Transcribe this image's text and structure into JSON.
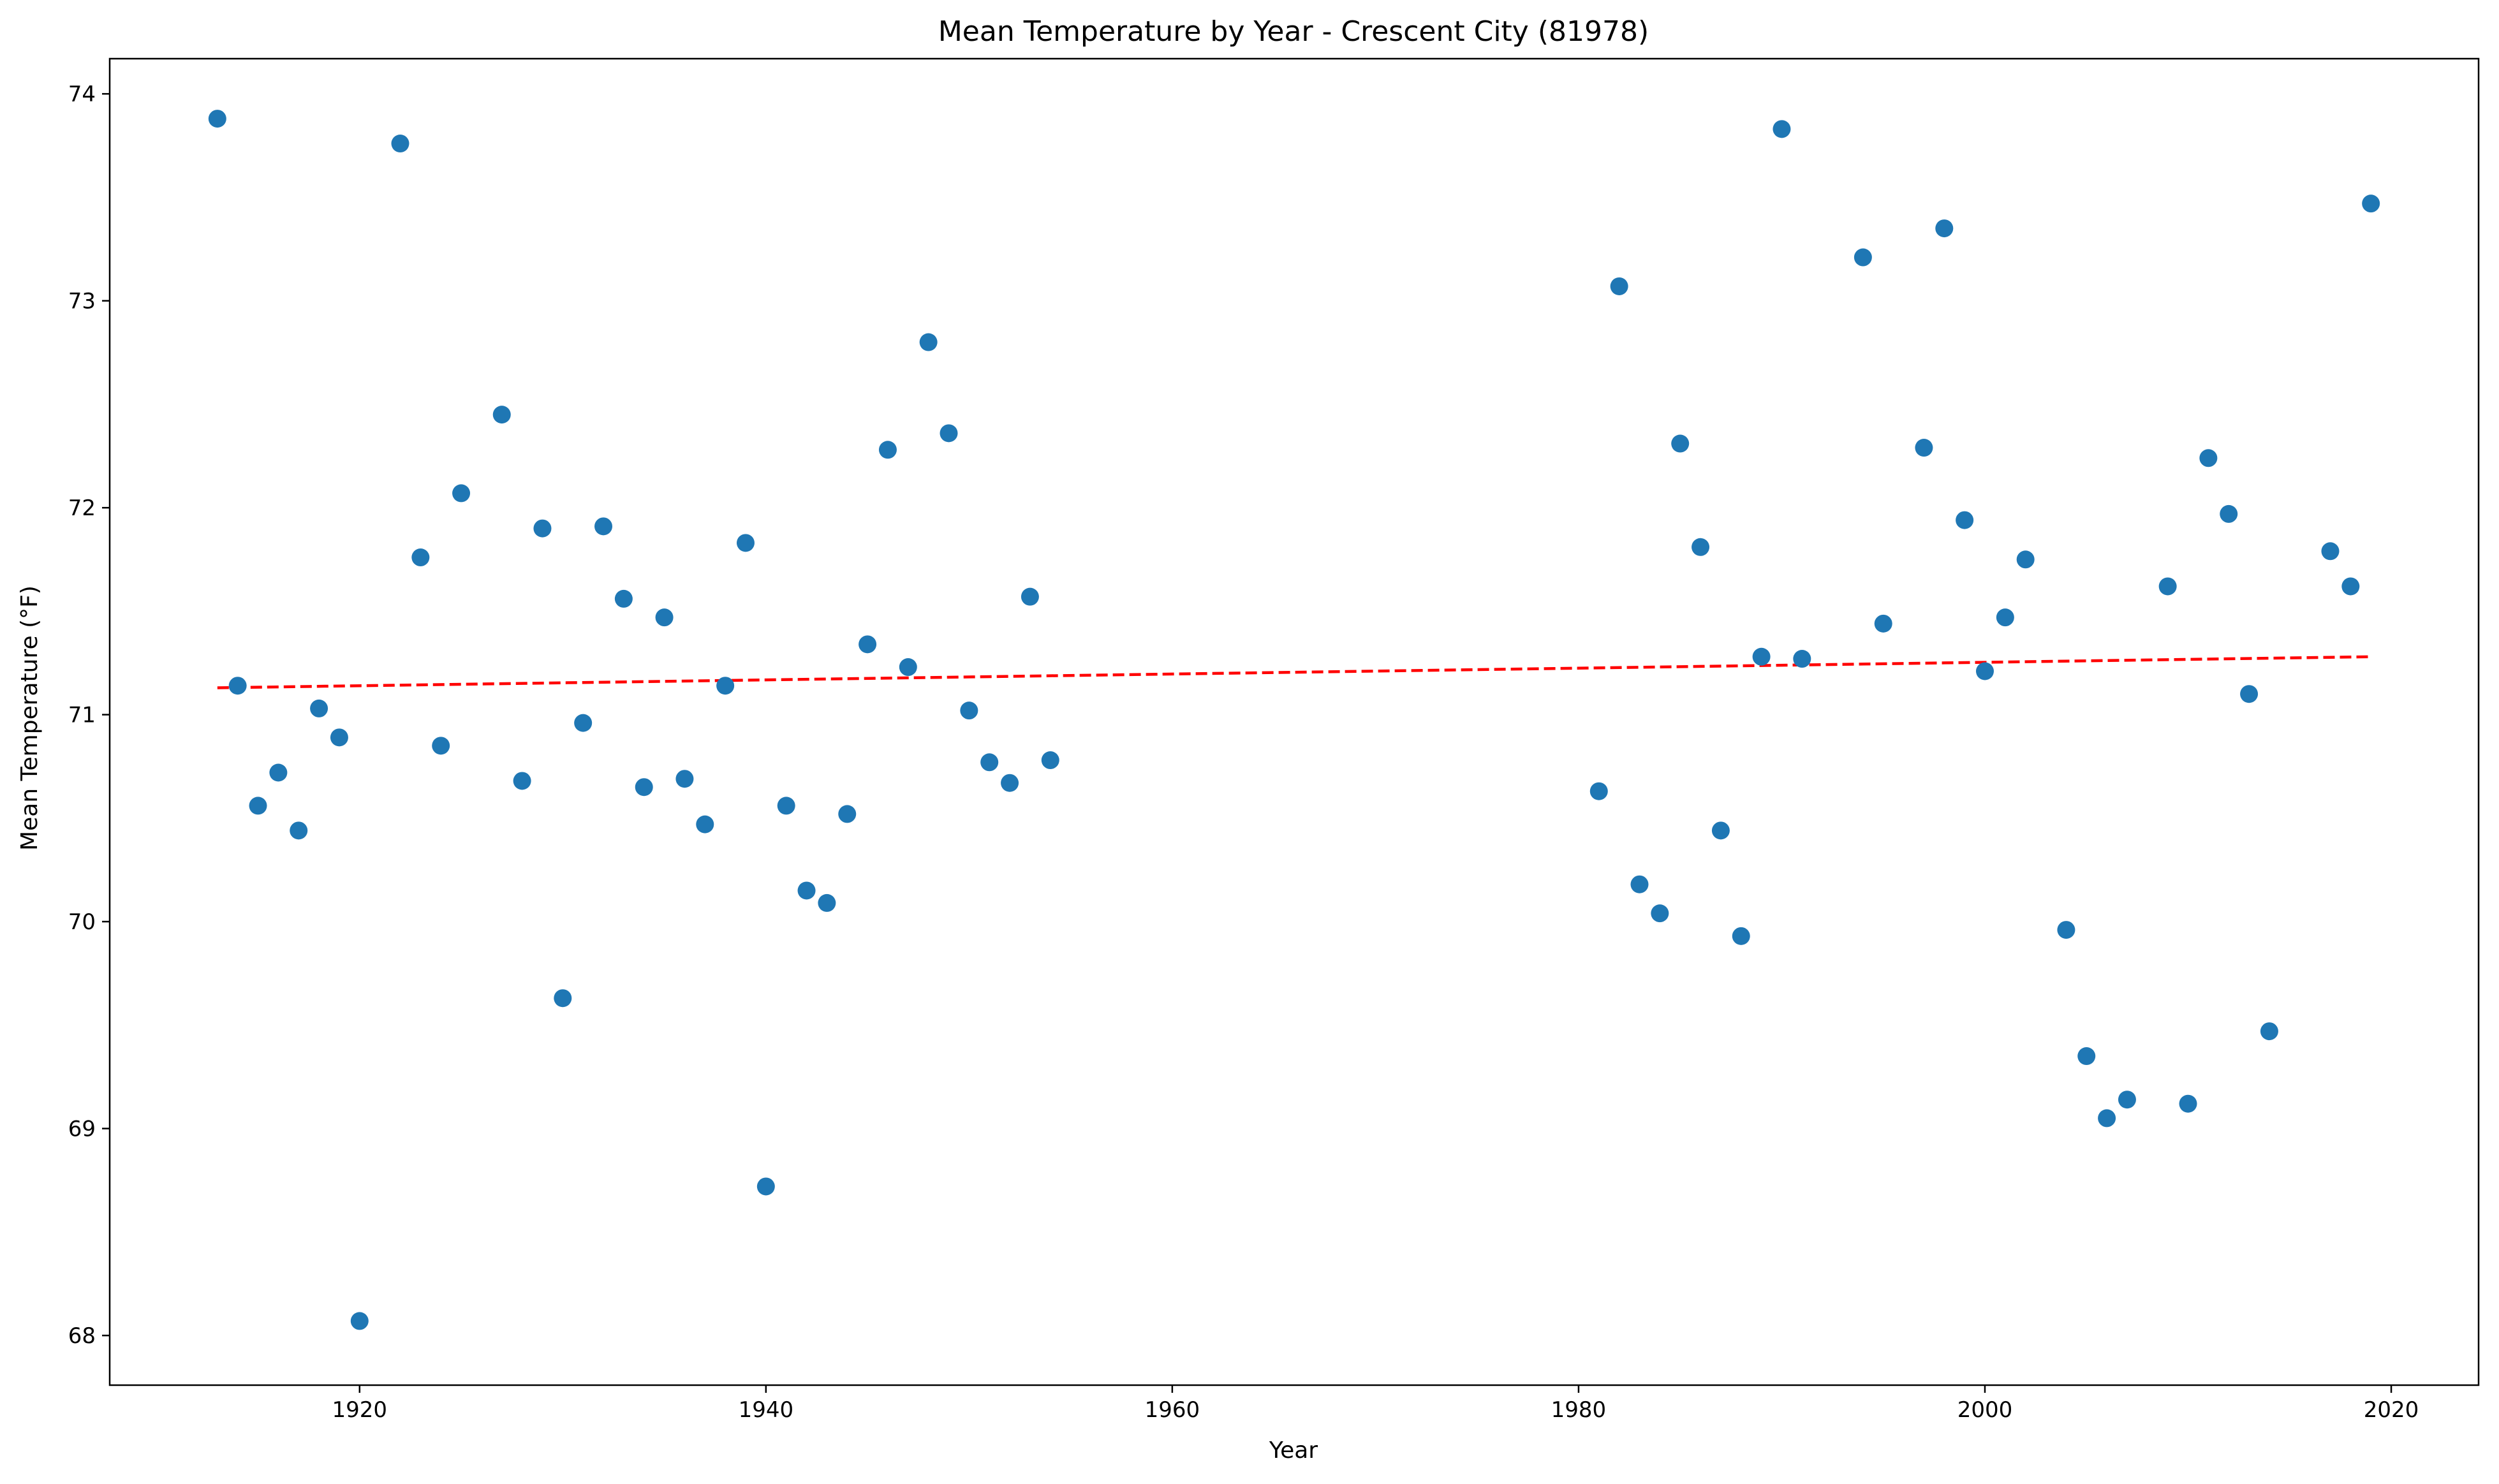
{
  "chart_data": {
    "type": "scatter",
    "title": "Mean Temperature by Year - Crescent City (81978)",
    "xlabel": "Year",
    "ylabel": "Mean Temperature (°F)",
    "xlim": [
      1907.7,
      2024.3
    ],
    "ylim": [
      67.76,
      74.17
    ],
    "xticks": [
      1920,
      1940,
      1960,
      1980,
      2000,
      2020
    ],
    "yticks": [
      68,
      69,
      70,
      71,
      72,
      73,
      74
    ],
    "grid": false,
    "point_color": "#1f77b4",
    "trend_color": "#ff0000",
    "trendline": {
      "x": [
        1913,
        2019
      ],
      "y": [
        71.13,
        71.28
      ],
      "style": "dashed"
    },
    "points": [
      {
        "x": 1913,
        "y": 73.88
      },
      {
        "x": 1914,
        "y": 71.14
      },
      {
        "x": 1915,
        "y": 70.56
      },
      {
        "x": 1916,
        "y": 70.72
      },
      {
        "x": 1917,
        "y": 70.44
      },
      {
        "x": 1918,
        "y": 71.03
      },
      {
        "x": 1919,
        "y": 70.89
      },
      {
        "x": 1920,
        "y": 68.07
      },
      {
        "x": 1922,
        "y": 73.76
      },
      {
        "x": 1923,
        "y": 71.76
      },
      {
        "x": 1924,
        "y": 70.85
      },
      {
        "x": 1925,
        "y": 72.07
      },
      {
        "x": 1927,
        "y": 72.45
      },
      {
        "x": 1928,
        "y": 70.68
      },
      {
        "x": 1929,
        "y": 71.9
      },
      {
        "x": 1930,
        "y": 69.63
      },
      {
        "x": 1931,
        "y": 70.96
      },
      {
        "x": 1932,
        "y": 71.91
      },
      {
        "x": 1933,
        "y": 71.56
      },
      {
        "x": 1934,
        "y": 70.65
      },
      {
        "x": 1935,
        "y": 71.47
      },
      {
        "x": 1936,
        "y": 70.69
      },
      {
        "x": 1937,
        "y": 70.47
      },
      {
        "x": 1938,
        "y": 71.14
      },
      {
        "x": 1939,
        "y": 71.83
      },
      {
        "x": 1940,
        "y": 68.72
      },
      {
        "x": 1941,
        "y": 70.56
      },
      {
        "x": 1942,
        "y": 70.15
      },
      {
        "x": 1943,
        "y": 70.09
      },
      {
        "x": 1944,
        "y": 70.52
      },
      {
        "x": 1945,
        "y": 71.34
      },
      {
        "x": 1946,
        "y": 72.28
      },
      {
        "x": 1947,
        "y": 71.23
      },
      {
        "x": 1948,
        "y": 72.8
      },
      {
        "x": 1949,
        "y": 72.36
      },
      {
        "x": 1950,
        "y": 71.02
      },
      {
        "x": 1951,
        "y": 70.77
      },
      {
        "x": 1952,
        "y": 70.67
      },
      {
        "x": 1953,
        "y": 71.57
      },
      {
        "x": 1954,
        "y": 70.78
      },
      {
        "x": 1981,
        "y": 70.63
      },
      {
        "x": 1982,
        "y": 73.07
      },
      {
        "x": 1983,
        "y": 70.18
      },
      {
        "x": 1984,
        "y": 70.04
      },
      {
        "x": 1985,
        "y": 72.31
      },
      {
        "x": 1986,
        "y": 71.81
      },
      {
        "x": 1987,
        "y": 70.44
      },
      {
        "x": 1988,
        "y": 69.93
      },
      {
        "x": 1989,
        "y": 71.28
      },
      {
        "x": 1990,
        "y": 73.83
      },
      {
        "x": 1991,
        "y": 71.27
      },
      {
        "x": 1994,
        "y": 73.21
      },
      {
        "x": 1995,
        "y": 71.44
      },
      {
        "x": 1997,
        "y": 72.29
      },
      {
        "x": 1998,
        "y": 73.35
      },
      {
        "x": 1999,
        "y": 71.94
      },
      {
        "x": 2000,
        "y": 71.21
      },
      {
        "x": 2001,
        "y": 71.47
      },
      {
        "x": 2002,
        "y": 71.75
      },
      {
        "x": 2004,
        "y": 69.96
      },
      {
        "x": 2005,
        "y": 69.35
      },
      {
        "x": 2006,
        "y": 69.05
      },
      {
        "x": 2007,
        "y": 69.14
      },
      {
        "x": 2009,
        "y": 71.62
      },
      {
        "x": 2010,
        "y": 69.12
      },
      {
        "x": 2011,
        "y": 72.24
      },
      {
        "x": 2012,
        "y": 71.97
      },
      {
        "x": 2013,
        "y": 71.1
      },
      {
        "x": 2014,
        "y": 69.47
      },
      {
        "x": 2017,
        "y": 71.79
      },
      {
        "x": 2018,
        "y": 71.62
      },
      {
        "x": 2019,
        "y": 73.47
      }
    ]
  }
}
